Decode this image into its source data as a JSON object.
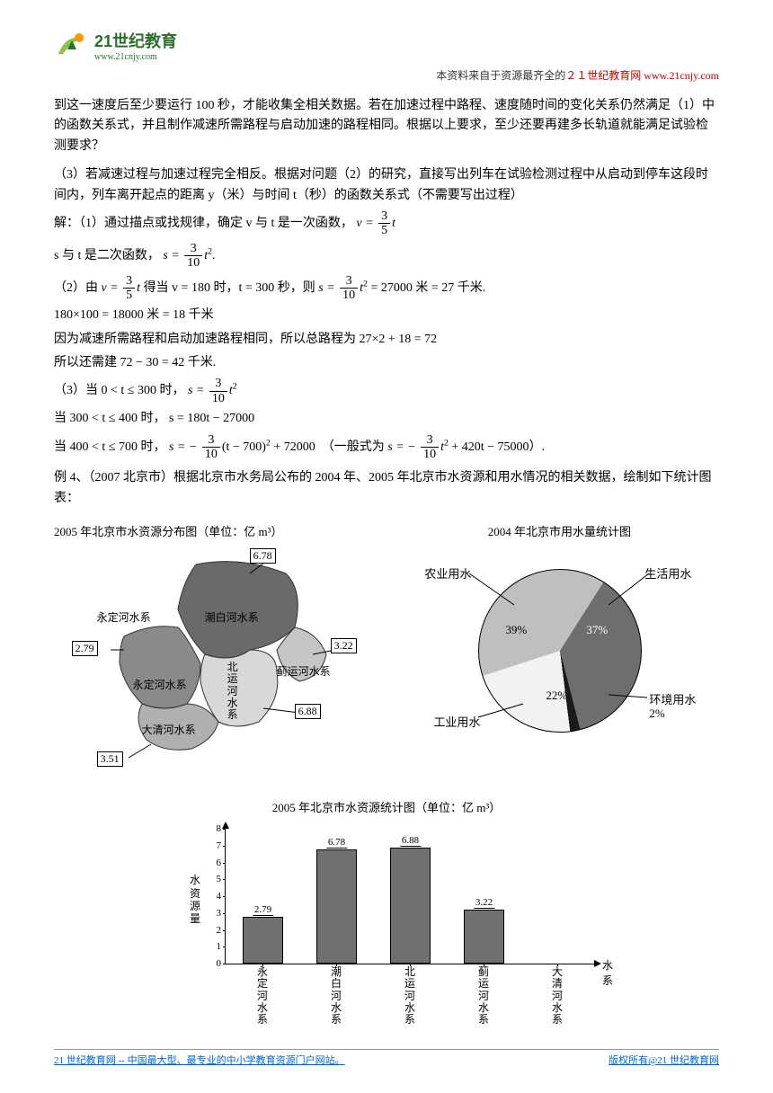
{
  "header": {
    "logo_main": "21世纪教育",
    "logo_sub": "www.21cnjy.com",
    "source_prefix": "本资料来自于资源最齐全的",
    "source_red": "２１世纪教育网",
    "source_link": "www.21cnjy.com"
  },
  "body": {
    "p1": "到这一速度后至少要运行 100 秒，才能收集全相关数据。若在加速过程中路程、速度随时间的变化关系仍然满足（1）中的函数关系式，并且制作减速所需路程与启动加速的路程相同。根据以上要求，至少还要再建多长轨道就能满足试验检测要求？",
    "p2": "（3）若减速过程与加速过程完全相反。根据对问题（2）的研究，直接写出列车在试验检测过程中从启动到停车这段时间内，列车离开起点的距离 y（米）与时间 t（秒）的函数关系式（不需要写出过程）",
    "sol1_pre": "解：（1）通过描点或找规律，确定 v 与 t 是一次函数，",
    "sol1_eq": {
      "lhs": "v =",
      "num": "3",
      "den": "5",
      "tail": "t"
    },
    "sol2_pre": "s 与 t 是二次函数，",
    "sol2_eq": {
      "lhs": "s =",
      "num": "3",
      "den": "10",
      "tail": "t",
      "exp": "2",
      "end": "."
    },
    "sol3_pre": "（2）由",
    "sol3_eq1": {
      "lhs": "v =",
      "num": "3",
      "den": "5",
      "tail": "t"
    },
    "sol3_mid1": "得当 v = 180 时，t = 300 秒，则",
    "sol3_eq2": {
      "lhs": "s =",
      "num": "3",
      "den": "10",
      "tail": "t",
      "exp": "2"
    },
    "sol3_end": "= 27000 米 = 27 千米.",
    "sol4": "180×100 = 18000 米 = 18 千米",
    "sol5": "因为减速所需路程和启动加速路程相同，所以总路程为 27×2 + 18 = 72",
    "sol6": "所以还需建 72 − 30 = 42 千米.",
    "sol7_pre": "（3）当 0 < t ≤ 300 时，",
    "sol7_eq": {
      "lhs": "s =",
      "num": "3",
      "den": "10",
      "tail": "t",
      "exp": "2"
    },
    "sol8_pre": "当 300 < t ≤ 400 时，",
    "sol8_eq": "s = 180t − 27000",
    "sol9_pre": "当 400 < t ≤ 700 时，",
    "sol9_eq": {
      "lhs": "s = −",
      "num": "3",
      "den": "10",
      "tail": "(t − 700)",
      "exp": "2",
      "end": " + 72000"
    },
    "sol9_alt_pre": "（一般式为",
    "sol9_alt": {
      "lhs": "s = −",
      "num": "3",
      "den": "10",
      "tail": "t",
      "exp": "2",
      "end": " + 420t − 75000"
    },
    "sol9_alt_end": "）.",
    "ex4": "例 4、（2007 北京市）根据北京市水务局公布的 2004 年、2005 年北京市水资源和用水情况的相关数据，绘制如下统计图表："
  },
  "map_chart": {
    "title": "2005 年北京市水资源分布图（单位：亿 m³）",
    "regions": [
      {
        "name": "永定河水系",
        "value": "2.79"
      },
      {
        "name": "潮白河水系",
        "value": "6.78"
      },
      {
        "name": "北运河水系",
        "value": "6.88"
      },
      {
        "name": "蓟运河水系",
        "value": "3.22"
      },
      {
        "name": "大清河水系",
        "value": "3.51"
      }
    ],
    "label_永定": "永定河水系",
    "label_潮白": "潮白河水系",
    "label_北运": "北运河水系",
    "label_蓟运": "蓟运河水系",
    "label_大清": "大清河水系",
    "label_永定2": "永定河水系",
    "colors": {
      "region1": "#6a6a6a",
      "region2": "#9a9a9a",
      "region3": "#c5c5c5",
      "region4": "#d8d8d8",
      "region5": "#b0b0b0"
    }
  },
  "pie_chart": {
    "title": "2004 年北京市用水量统计图",
    "slices": [
      {
        "label": "农业用水",
        "pct": "39%",
        "color": "#bfbfbf",
        "start": 252,
        "end": 392.4
      },
      {
        "label": "生活用水",
        "pct": "37%",
        "color": "#6e6e6e",
        "start": 392.4,
        "end": 525.6
      },
      {
        "label": "环境用水",
        "pct": "2%",
        "color": "#1a1a1a",
        "start": 525.6,
        "end": 532.8
      },
      {
        "label": "工业用水",
        "pct": "22%",
        "color": "#f2f2f2",
        "start": 532.8,
        "end": 612
      }
    ],
    "border_color": "#000000"
  },
  "bar_chart": {
    "title": "2005 年北京市水资源统计图（单位：亿 m³）",
    "ylabel": "水资源量",
    "xlabel": "水系",
    "ymax": 8,
    "ytick_step": 1,
    "bar_color": "#707070",
    "bar_border": "#000000",
    "categories": [
      {
        "label": "永定河水系",
        "value": 2.79,
        "value_str": "2.79"
      },
      {
        "label": "潮白河水系",
        "value": 6.78,
        "value_str": "6.78"
      },
      {
        "label": "北运河水系",
        "value": 6.88,
        "value_str": "6.88"
      },
      {
        "label": "蓟运河水系",
        "value": 3.22,
        "value_str": "3.22"
      },
      {
        "label": "大清河水系",
        "value": null,
        "value_str": ""
      }
    ]
  },
  "footer": {
    "left": "21 世纪教育网 -- 中国最大型、最专业的中小学教育资源门户网站。",
    "right": "版权所有@21 世纪教育网"
  }
}
